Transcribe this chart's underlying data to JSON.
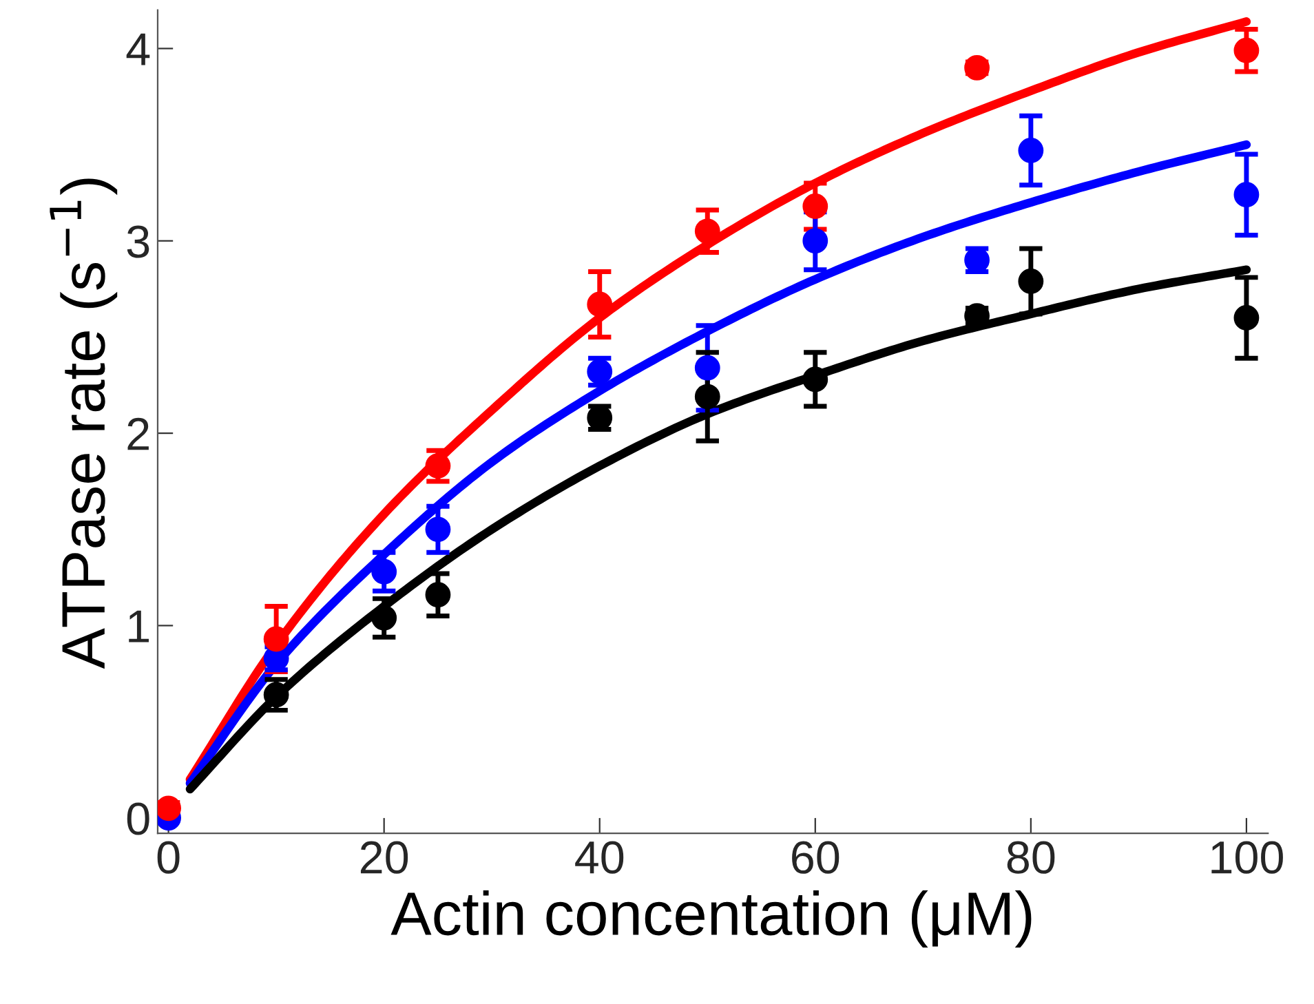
{
  "chart_data": {
    "type": "scatter",
    "xlabel": "Actin concentation (μM)",
    "ylabel": "ATPase rate (s$^{−1}$)",
    "xlim": [
      -1,
      102
    ],
    "ylim": [
      -0.08,
      4.2
    ],
    "xticks": [
      0,
      20,
      40,
      60,
      80,
      100
    ],
    "yticks": [
      0,
      1,
      2,
      3,
      4
    ],
    "grid": false,
    "legend": false,
    "marker": "circle",
    "series": [
      {
        "color": "#ff0000",
        "x": [
          0,
          10,
          25,
          40,
          50,
          60,
          75,
          100
        ],
        "values": [
          0.05,
          0.93,
          1.83,
          2.67,
          3.05,
          3.18,
          3.9,
          3.99
        ],
        "errors": [
          0.03,
          0.17,
          0.08,
          0.17,
          0.11,
          0.12,
          0.03,
          0.11
        ]
      },
      {
        "color": "#0000ff",
        "x": [
          0,
          10,
          20,
          25,
          40,
          50,
          60,
          75,
          80,
          100
        ],
        "values": [
          0.0,
          0.83,
          1.28,
          1.5,
          2.32,
          2.34,
          3.0,
          2.9,
          3.47,
          3.24
        ],
        "errors": [
          null,
          0.06,
          0.1,
          0.12,
          0.07,
          0.22,
          0.15,
          0.06,
          0.18,
          0.21
        ]
      },
      {
        "color": "#000000",
        "x": [
          10,
          20,
          25,
          40,
          50,
          60,
          75,
          80,
          100
        ],
        "values": [
          0.64,
          1.04,
          1.16,
          2.08,
          2.19,
          2.28,
          2.61,
          2.79,
          2.6
        ],
        "errors": [
          0.08,
          0.1,
          0.11,
          0.06,
          0.23,
          0.14,
          0.04,
          0.17,
          0.21
        ]
      },
      {
        "type": "line",
        "color": "#ff0000",
        "marker": "none",
        "x": [
          2,
          10,
          20,
          30,
          40,
          50,
          60,
          70,
          80,
          90,
          100
        ],
        "values": [
          0.2,
          0.9,
          1.58,
          2.12,
          2.6,
          2.98,
          3.3,
          3.56,
          3.78,
          3.98,
          4.14
        ]
      },
      {
        "type": "line",
        "color": "#0000ff",
        "marker": "none",
        "x": [
          2,
          10,
          20,
          30,
          40,
          50,
          60,
          70,
          80,
          90,
          100
        ],
        "values": [
          0.18,
          0.8,
          1.37,
          1.85,
          2.22,
          2.53,
          2.8,
          3.02,
          3.2,
          3.36,
          3.5
        ]
      },
      {
        "type": "line",
        "color": "#000000",
        "marker": "none",
        "x": [
          2,
          10,
          20,
          30,
          40,
          50,
          60,
          70,
          80,
          90,
          100
        ],
        "values": [
          0.15,
          0.63,
          1.1,
          1.5,
          1.83,
          2.1,
          2.3,
          2.48,
          2.62,
          2.75,
          2.85
        ]
      }
    ]
  }
}
